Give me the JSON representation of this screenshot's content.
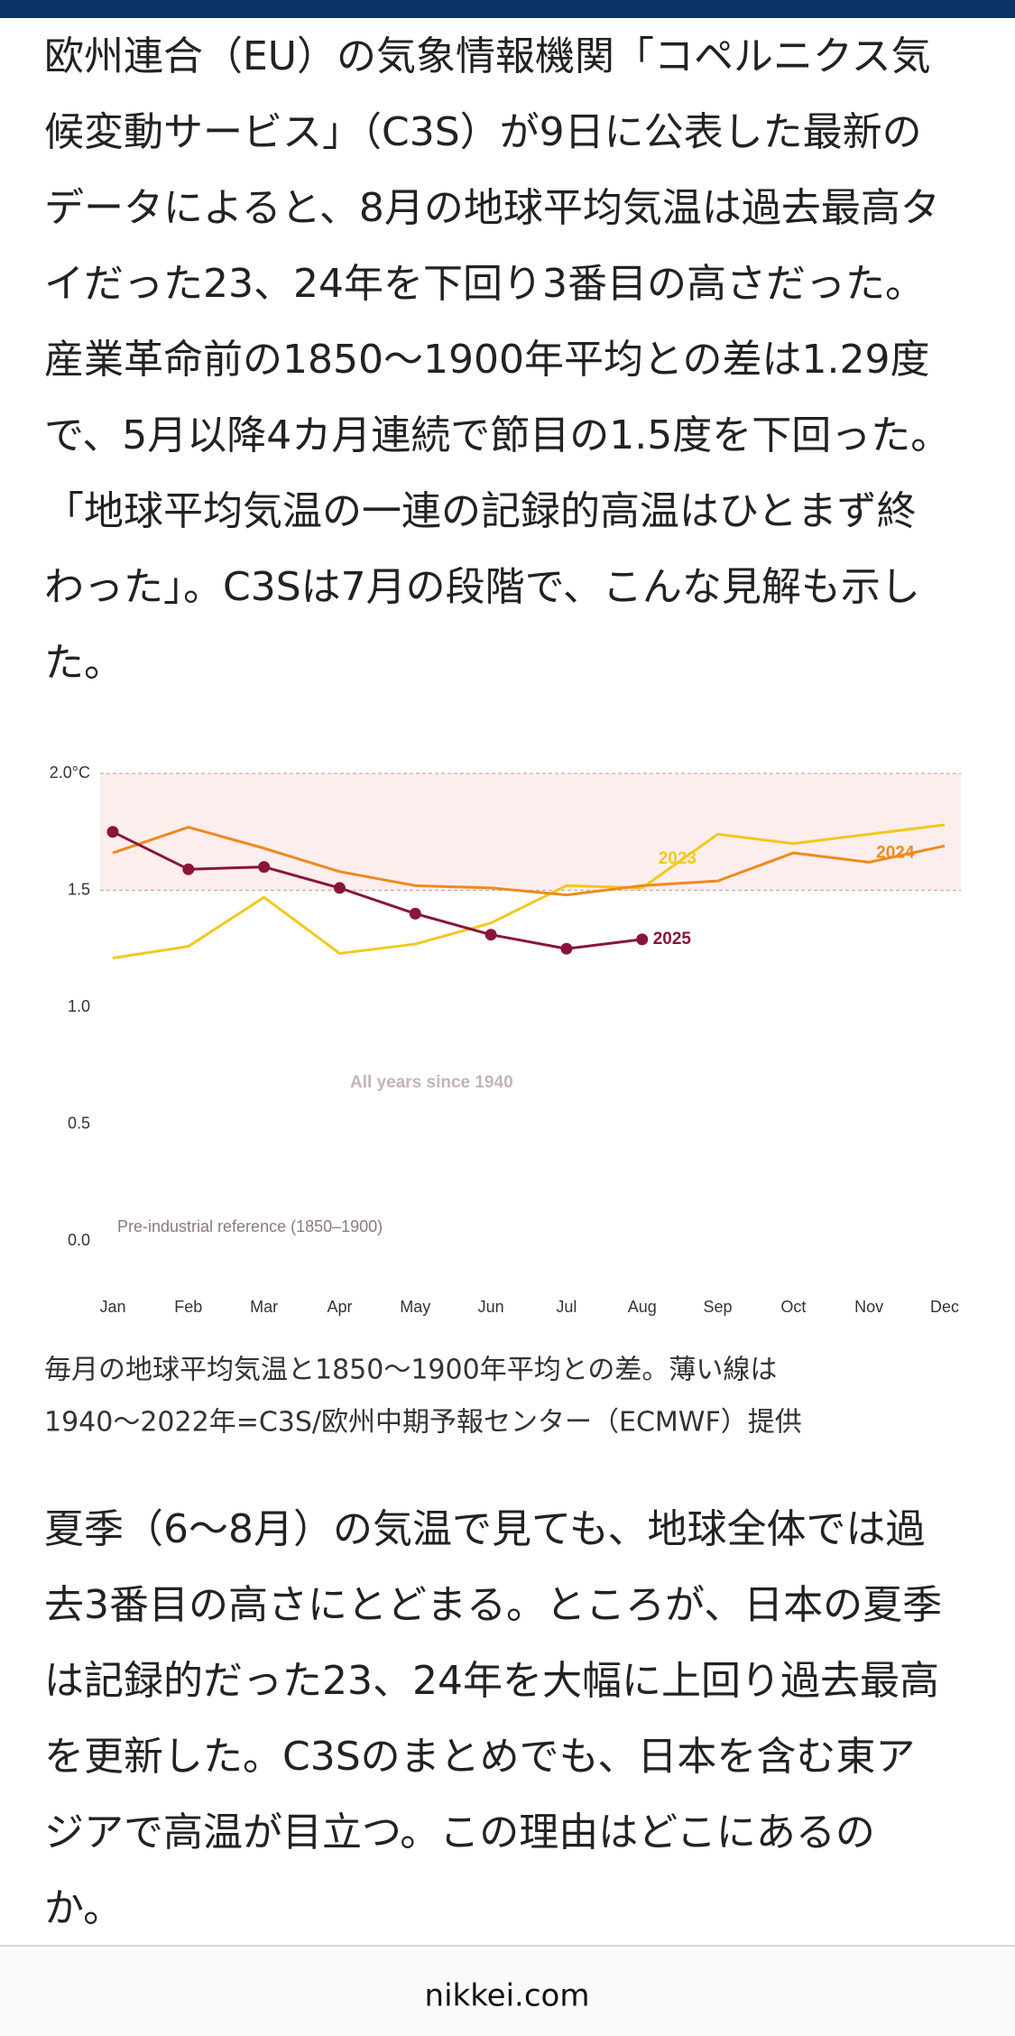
{
  "article": {
    "paragraphs": [
      [
        "欧州連合（EU）の気象情報機関「コペルニクス気",
        "候変動サービス」（C3S）が9日に公表した最新の",
        "データによると、8月の地球平均気温は過去最高タ",
        "イだった23、24年を下回り3番目の高さだった。",
        "産業革命前の1850〜1900年平均との差は1.29度",
        "で、5月以降4カ月連続で節目の1.5度を下回った。",
        "「地球平均気温の一連の記録的高温はひとまず終",
        "わった」。C3Sは7月の段階で、こんな見解も示し",
        "た。"
      ],
      [
        "夏季（6〜8月）の気温で見ても、地球全体では過",
        "去3番目の高さにとどまる。ところが、日本の夏季",
        "は記録的だった23、24年を大幅に上回り過去最高",
        "を更新した。C3Sのまとめでも、日本を含む東ア",
        "ジアで高温が目立つ。この理由はどこにあるの",
        "か。"
      ]
    ],
    "caption": [
      "毎月の地球平均気温と1850〜1900年平均との差。薄い線は",
      "1940〜2022年=C3S/欧州中期予報センター（ECMWF）提供"
    ]
  },
  "footer": {
    "site": "nikkei.com"
  },
  "chart_data": {
    "type": "line",
    "categories": [
      "Jan",
      "Feb",
      "Mar",
      "Apr",
      "May",
      "Jun",
      "Jul",
      "Aug",
      "Sep",
      "Oct",
      "Nov",
      "Dec"
    ],
    "series": [
      {
        "name": "2023",
        "color": "#f2c81f",
        "values": [
          1.21,
          1.26,
          1.47,
          1.23,
          1.27,
          1.36,
          1.52,
          1.51,
          1.74,
          1.7,
          1.74,
          1.78
        ]
      },
      {
        "name": "2024",
        "color": "#ee8a1c",
        "values": [
          1.66,
          1.77,
          1.68,
          1.58,
          1.52,
          1.51,
          1.48,
          1.52,
          1.54,
          1.66,
          1.62,
          1.69
        ]
      },
      {
        "name": "2025",
        "color": "#8a1538",
        "markers": true,
        "values": [
          1.75,
          1.59,
          1.6,
          1.51,
          1.4,
          1.31,
          1.25,
          1.29,
          null,
          null,
          null,
          null
        ]
      }
    ],
    "ylim": [
      0,
      2
    ],
    "yticks": [
      {
        "value": 0,
        "label": "0.0"
      },
      0.5,
      {
        "value": 1,
        "label": "1.0"
      },
      1.5,
      {
        "value": 2,
        "label": "2.0°C"
      }
    ],
    "grid": false,
    "highlight_band": {
      "from": 1.5,
      "to": 2,
      "color": "#fdeeee"
    },
    "annotations": [
      "All years since 1940",
      "Pre-industrial reference (1850–1900)"
    ]
  }
}
